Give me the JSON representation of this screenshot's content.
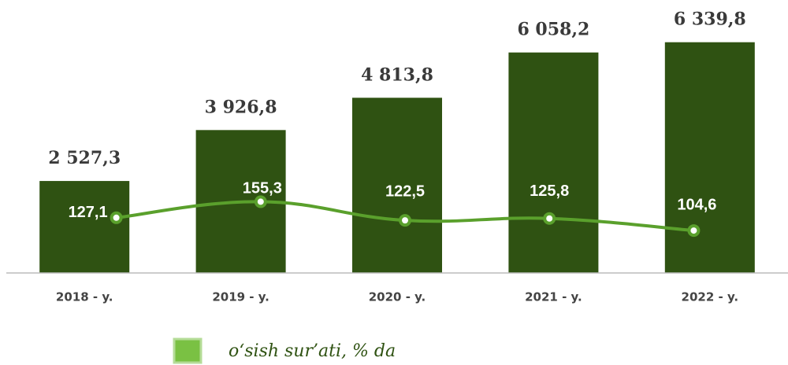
{
  "chart_data": {
    "type": "bar_line",
    "categories": [
      "2018 - y.",
      "2019 - y.",
      "2020 - y.",
      "2021 - y.",
      "2022 - y."
    ],
    "series": [
      {
        "color": "#2f5212",
        "values": [
          2527.3,
          3926.8,
          4813.8,
          6058.2,
          6339.8
        ],
        "value_labels": [
          "2 527,3",
          "3 926,8",
          "4 813,8",
          "6 058,2",
          "6 339,8"
        ]
      },
      {
        "name": "o‘sish sur’ati, % da",
        "color": "#5aa02c",
        "axis": "y2",
        "values": [
          127.1,
          155.3,
          122.5,
          125.8,
          104.6
        ],
        "value_labels": [
          "127,1",
          "155,3",
          "122,5",
          "125,8",
          "104,6"
        ]
      }
    ],
    "ylim": [
      0,
      7500
    ],
    "y2lim": [
      30,
      510
    ]
  }
}
